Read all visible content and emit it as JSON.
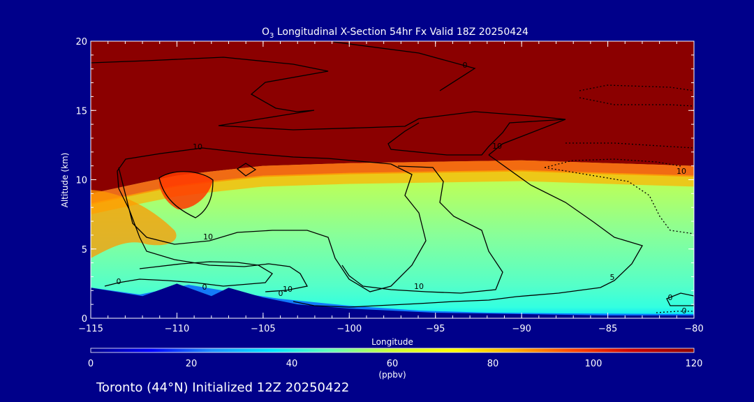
{
  "chart_data": {
    "type": "heatmap",
    "title_prefix": "O",
    "title_subscript": "3",
    "title_rest": " Longitudinal X-Section 54hr  Fx Valid 18Z 20250424",
    "xlabel": "Longitude",
    "ylabel": "Altitude (km)",
    "xlim": [
      -115,
      -80
    ],
    "ylim": [
      0,
      20
    ],
    "x_ticks": [
      -115,
      -110,
      -105,
      -100,
      -95,
      -90,
      -85,
      -80
    ],
    "x_tick_labels": [
      "−115",
      "−110",
      "−105",
      "−100",
      "−95",
      "−90",
      "−85",
      "−80"
    ],
    "y_ticks": [
      0,
      5,
      10,
      15,
      20
    ],
    "y_tick_labels": [
      "0",
      "5",
      "10",
      "15",
      "20"
    ],
    "colorbar": {
      "min": 0,
      "max": 120,
      "ticks": [
        "0",
        "20",
        "40",
        "60",
        "80",
        "100",
        "120"
      ],
      "units": "(ppbv)",
      "colors": [
        "#00008b",
        "#0000ff",
        "#1e90ff",
        "#00e5ff",
        "#66ffb3",
        "#ccff33",
        "#ffff00",
        "#ffb000",
        "#ff4500",
        "#cc0000",
        "#8b0000"
      ]
    },
    "ozone_field": {
      "tropopause_km": [
        {
          "lon": -115,
          "alt": 9.0
        },
        {
          "lon": -112,
          "alt": 9.8
        },
        {
          "lon": -110,
          "alt": 10.3
        },
        {
          "lon": -108,
          "alt": 10.6
        },
        {
          "lon": -105,
          "alt": 11.0
        },
        {
          "lon": -100,
          "alt": 11.2
        },
        {
          "lon": -95,
          "alt": 11.3
        },
        {
          "lon": -90,
          "alt": 11.4
        },
        {
          "lon": -85,
          "alt": 11.2
        },
        {
          "lon": -80,
          "alt": 11.0
        }
      ],
      "terrain_km": [
        {
          "lon": -115,
          "alt": 2.2
        },
        {
          "lon": -112,
          "alt": 1.6
        },
        {
          "lon": -110,
          "alt": 2.5
        },
        {
          "lon": -108,
          "alt": 1.6
        },
        {
          "lon": -107,
          "alt": 2.2
        },
        {
          "lon": -105,
          "alt": 1.5
        },
        {
          "lon": -103,
          "alt": 1.0
        },
        {
          "lon": -100,
          "alt": 0.7
        },
        {
          "lon": -95,
          "alt": 0.4
        },
        {
          "lon": -90,
          "alt": 0.3
        },
        {
          "lon": -85,
          "alt": 0.2
        },
        {
          "lon": -80,
          "alt": 0.2
        }
      ]
    },
    "contour_labels": [
      "10",
      "10",
      "10",
      "10",
      "10",
      "0",
      "0",
      "0",
      "0",
      "0",
      "5",
      "0",
      "10"
    ],
    "footer": "Toronto (44°N) Initialized 12Z 20250422"
  }
}
